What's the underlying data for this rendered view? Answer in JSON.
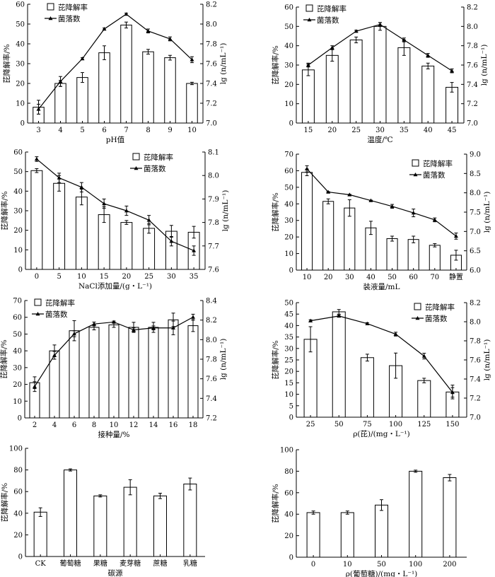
{
  "chart_data": [
    {
      "type": "bar+line",
      "xlabel": "pH值",
      "ylabel": "芘降解率/%",
      "y2label": "lg (n/mL⁻¹)",
      "categories": [
        "3",
        "4",
        "5",
        "6",
        "7",
        "8",
        "9",
        "10"
      ],
      "ylim": [
        0,
        60
      ],
      "yticks": [
        0,
        10,
        20,
        30,
        40,
        50,
        60
      ],
      "y2lim": [
        7.0,
        8.2
      ],
      "y2ticks": [
        "7.0",
        "7.2",
        "7.4",
        "7.6",
        "7.8",
        "8.0",
        "8.2"
      ],
      "bars": {
        "name": "芘降解率",
        "values": [
          8,
          20,
          23,
          35.5,
          49.5,
          36,
          33,
          20
        ],
        "errors": [
          3.5,
          1.5,
          2.5,
          3.5,
          1.5,
          1.2,
          1.2,
          0.6
        ]
      },
      "line": {
        "name": "菌落数",
        "values": [
          7.14,
          7.42,
          7.65,
          7.95,
          8.1,
          7.93,
          7.85,
          7.64
        ],
        "errors": [
          0.05,
          0.05,
          0.01,
          0.01,
          0.01,
          0.02,
          0.02,
          0.03
        ]
      }
    },
    {
      "type": "bar+line",
      "xlabel": "温度/℃",
      "ylabel": "芘降解率/%",
      "y2label": "lg (n/mL⁻¹)",
      "categories": [
        "15",
        "20",
        "25",
        "30",
        "35",
        "40",
        "45"
      ],
      "ylim": [
        0,
        60
      ],
      "yticks": [
        0,
        10,
        20,
        30,
        40,
        50,
        60
      ],
      "y2lim": [
        7.0,
        8.2
      ],
      "y2ticks": [
        "7.0",
        "7.2",
        "7.4",
        "7.6",
        "7.8",
        "8.0",
        "8.2"
      ],
      "bars": {
        "name": "芘降解率",
        "values": [
          27.5,
          35,
          43,
          50,
          39,
          29.5,
          18.5
        ],
        "errors": [
          3,
          3,
          1.5,
          2,
          4,
          1.5,
          2.5
        ]
      },
      "line": {
        "name": "菌落数",
        "values": [
          7.6,
          7.78,
          7.95,
          8.02,
          7.86,
          7.7,
          7.54
        ],
        "errors": [
          0.02,
          0.02,
          0.01,
          0.02,
          0.02,
          0.02,
          0.02
        ]
      }
    },
    {
      "type": "bar+line",
      "xlabel": "NaCl添加量/(g・L⁻¹)",
      "ylabel": "芘降解率/%",
      "y2label": "lg (n/mL⁻¹)",
      "categories": [
        "0",
        "5",
        "10",
        "15",
        "20",
        "25",
        "30",
        "35"
      ],
      "ylim": [
        0,
        60
      ],
      "yticks": [
        0,
        10,
        20,
        30,
        40,
        50,
        60
      ],
      "y2lim": [
        7.6,
        8.1
      ],
      "y2ticks": [
        "7.6",
        "7.7",
        "7.8",
        "7.9",
        "8.0",
        "8.1"
      ],
      "bars": {
        "name": "芘降解率",
        "values": [
          50.5,
          44,
          37,
          28,
          24,
          21,
          19.5,
          19
        ],
        "errors": [
          1,
          4,
          4,
          4,
          1,
          2.5,
          3,
          3
        ]
      },
      "line": {
        "name": "菌落数",
        "values": [
          8.07,
          7.99,
          7.95,
          7.88,
          7.85,
          7.81,
          7.72,
          7.68
        ],
        "errors": [
          0.01,
          0.02,
          0.02,
          0.02,
          0.02,
          0.02,
          0.02,
          0.02
        ]
      }
    },
    {
      "type": "bar+line",
      "xlabel": "装液量/mL",
      "ylabel": "芘降解率/%",
      "y2label": "lg (n/mL⁻¹)",
      "categories": [
        "10",
        "20",
        "30",
        "40",
        "50",
        "60",
        "70",
        "静置"
      ],
      "ylim": [
        0,
        70
      ],
      "yticks": [
        0,
        10,
        20,
        30,
        40,
        50,
        60,
        70
      ],
      "y2lim": [
        6.0,
        9.0
      ],
      "y2ticks": [
        "6.0",
        "6.5",
        "7.0",
        "7.5",
        "8.0",
        "8.5",
        "9.0"
      ],
      "bars": {
        "name": "芘降解率",
        "values": [
          59,
          41.5,
          37.5,
          25.5,
          19,
          18.5,
          15,
          9
        ],
        "errors": [
          2,
          1.5,
          5,
          4,
          1.5,
          2,
          1,
          3
        ]
      },
      "line": {
        "name": "菌落数",
        "values": [
          8.62,
          8.02,
          7.95,
          7.8,
          7.65,
          7.48,
          7.3,
          6.88
        ],
        "errors": [
          0.08,
          0.01,
          0.01,
          0.01,
          0.05,
          0.1,
          0.05,
          0.08
        ]
      }
    },
    {
      "type": "bar+line",
      "xlabel": "接种量/%",
      "ylabel": "芘降解率/%",
      "y2label": "lg (n/mL⁻¹)",
      "categories": [
        "2",
        "4",
        "6",
        "8",
        "10",
        "12",
        "14",
        "16",
        "18"
      ],
      "ylim": [
        0,
        70
      ],
      "yticks": [
        0,
        10,
        20,
        30,
        40,
        50,
        60,
        70
      ],
      "y2lim": [
        7.2,
        8.4
      ],
      "y2ticks": [
        "7.2",
        "7.4",
        "7.6",
        "7.8",
        "8.0",
        "8.2",
        "8.4"
      ],
      "bars": {
        "name": "芘降解率",
        "values": [
          21,
          40,
          52,
          54,
          55.5,
          54,
          54,
          58.5,
          55
        ],
        "errors": [
          3.5,
          3.5,
          6,
          1.5,
          1.5,
          3,
          3,
          4,
          3.5
        ]
      },
      "line": {
        "name": "菌落数",
        "values": [
          7.52,
          7.84,
          8.06,
          8.16,
          8.18,
          8.1,
          8.12,
          8.12,
          8.23
        ],
        "errors": [
          0.05,
          0.04,
          0.03,
          0.02,
          0.01,
          0.02,
          0.02,
          0.07,
          0.03
        ]
      }
    },
    {
      "type": "bar+line",
      "xlabel": "ρ(芘)/(mg・L⁻¹)",
      "ylabel": "芘降解率/%",
      "y2label": "lg (n/mL⁻¹)",
      "categories": [
        "25",
        "50",
        "75",
        "100",
        "125",
        "150"
      ],
      "ylim": [
        0,
        50
      ],
      "yticks": [
        0,
        5,
        10,
        15,
        20,
        25,
        30,
        35,
        40,
        45,
        50
      ],
      "y2lim": [
        7.0,
        8.2
      ],
      "y2ticks": [
        "7.0",
        "7.2",
        "7.4",
        "7.6",
        "7.8",
        "8.0",
        "8.2"
      ],
      "bars": {
        "name": "芘降解率",
        "values": [
          34,
          46,
          26,
          22.5,
          16,
          11
        ],
        "errors": [
          5.5,
          1,
          1.5,
          5.5,
          1,
          3
        ]
      },
      "line": {
        "name": "菌落数",
        "values": [
          8.01,
          8.06,
          7.98,
          7.87,
          7.64,
          7.26
        ],
        "errors": [
          0.01,
          0.01,
          0.01,
          0.02,
          0.03,
          0.05
        ]
      }
    },
    {
      "type": "bar",
      "xlabel": "碳源",
      "ylabel": "芘降解率/%",
      "categories": [
        "CK",
        "葡萄糖",
        "果糖",
        "麦芽糖",
        "蔗糖",
        "乳糖"
      ],
      "ylim": [
        0,
        100
      ],
      "yticks": [
        0,
        20,
        40,
        60,
        80,
        100
      ],
      "bars": {
        "name": "芘降解率",
        "values": [
          41,
          80,
          56,
          64,
          56,
          67
        ],
        "errors": [
          4,
          1,
          1,
          7,
          2.5,
          5.5
        ]
      }
    },
    {
      "type": "bar",
      "xlabel": "ρ(葡萄糖)/(mg・L⁻¹)",
      "ylabel": "芘降解率/%",
      "categories": [
        "0",
        "10",
        "50",
        "100",
        "200"
      ],
      "ylim": [
        0,
        100
      ],
      "yticks": [
        0,
        20,
        40,
        60,
        80,
        100
      ],
      "bars": {
        "name": "芘降解率",
        "values": [
          41.5,
          41.5,
          48.5,
          80,
          74
        ],
        "errors": [
          1.5,
          1.5,
          5,
          1,
          3
        ]
      }
    }
  ]
}
